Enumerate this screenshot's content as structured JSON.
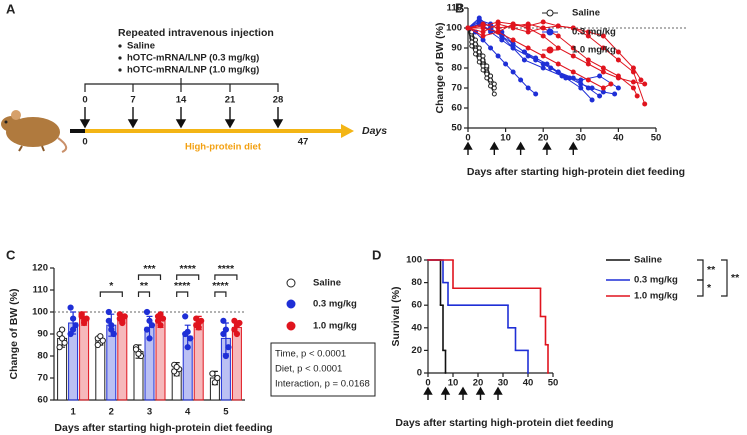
{
  "diagram": {
    "label": "A",
    "heading": "Repeated intravenous injection",
    "items": [
      "Saline",
      "hOTC-mRNA/LNP (0.3 mg/kg)",
      "hOTC-mRNA/LNP (1.0 mg/kg)"
    ],
    "injection_days": [
      "0",
      "7",
      "14",
      "21",
      "28"
    ],
    "timeline_start": "0",
    "timeline_end": "47",
    "axis_label": "Days",
    "diet_label": "High-protein diet"
  },
  "chart_data": [
    {
      "type": "line",
      "label": "B",
      "y_label": "Change of BW (%)",
      "x_label": "Days after starting high-protein diet feeding",
      "xlim": [
        0,
        50
      ],
      "xticks": [
        0,
        10,
        20,
        30,
        40,
        50
      ],
      "ylim": [
        50,
        110
      ],
      "yticks": [
        50,
        60,
        70,
        80,
        90,
        100,
        110
      ],
      "ref_line": 100,
      "arrow_days": [
        0,
        7,
        14,
        21,
        28
      ],
      "series": [
        {
          "name": "Saline",
          "color": "#222222",
          "marker": "open",
          "subjects": [
            {
              "x": [
                0,
                1,
                2,
                3,
                4,
                5,
                6,
                7
              ],
              "values": [
                100,
                91,
                87,
                83,
                79,
                75,
                71,
                67
              ]
            },
            {
              "x": [
                0,
                1,
                2,
                3,
                4,
                5,
                6,
                7
              ],
              "values": [
                100,
                95,
                90,
                86,
                82,
                78,
                74,
                70
              ]
            },
            {
              "x": [
                0,
                1,
                2,
                3,
                4,
                5,
                6
              ],
              "values": [
                100,
                97,
                92,
                88,
                84,
                80,
                76
              ]
            },
            {
              "x": [
                0,
                1,
                2,
                3,
                4,
                5
              ],
              "values": [
                100,
                93,
                89,
                85,
                81,
                77
              ]
            },
            {
              "x": [
                0,
                1,
                2,
                3,
                4,
                5,
                6,
                7
              ],
              "values": [
                100,
                98,
                94,
                90,
                86,
                81,
                76,
                72
              ]
            }
          ]
        },
        {
          "name": "0.3 mg/kg",
          "color": "#1f2fd6",
          "marker": "filled",
          "subjects": [
            {
              "x": [
                0,
                2,
                4,
                6,
                8,
                10,
                12,
                14,
                16,
                18
              ],
              "values": [
                100,
                98,
                94,
                90,
                86,
                82,
                78,
                74,
                70,
                67
              ]
            },
            {
              "x": [
                0,
                3,
                6,
                9,
                12,
                15,
                18,
                22,
                26,
                30,
                33
              ],
              "values": [
                100,
                104,
                102,
                98,
                92,
                88,
                84,
                80,
                75,
                70,
                64
              ]
            },
            {
              "x": [
                0,
                3,
                6,
                9,
                12,
                15,
                18,
                21,
                24,
                27,
                30,
                33,
                36,
                39
              ],
              "values": [
                100,
                102,
                99,
                96,
                92,
                88,
                85,
                82,
                78,
                75,
                72,
                70,
                68,
                67
              ]
            },
            {
              "x": [
                0,
                3,
                6,
                9,
                12,
                16,
                20,
                24,
                28,
                32,
                35
              ],
              "values": [
                100,
                105,
                100,
                96,
                90,
                86,
                82,
                78,
                75,
                70,
                66
              ]
            },
            {
              "x": [
                0,
                3,
                6,
                9,
                12,
                15,
                20,
                25,
                30,
                35,
                40
              ],
              "values": [
                100,
                103,
                98,
                94,
                90,
                84,
                80,
                76,
                74,
                76,
                70
              ]
            }
          ]
        },
        {
          "name": "1.0 mg/kg",
          "color": "#e0141e",
          "marker": "filled",
          "subjects": [
            {
              "x": [
                0,
                4,
                8,
                12,
                16,
                20,
                24,
                28,
                32,
                36,
                40,
                44,
                47
              ],
              "values": [
                100,
                100,
                98,
                102,
                100,
                96,
                90,
                86,
                82,
                78,
                75,
                73,
                72
              ]
            },
            {
              "x": [
                0,
                4,
                8,
                12,
                16,
                20,
                24,
                28,
                32,
                36,
                40,
                44,
                46
              ],
              "values": [
                100,
                102,
                100,
                101,
                102,
                100,
                101,
                100,
                98,
                96,
                88,
                80,
                74
              ]
            },
            {
              "x": [
                0,
                4,
                8,
                12,
                16,
                20,
                24,
                28,
                32,
                36,
                38
              ],
              "values": [
                100,
                96,
                98,
                94,
                90,
                86,
                82,
                78,
                74,
                70,
                72
              ]
            },
            {
              "x": [
                0,
                4,
                8,
                12,
                16,
                20,
                24,
                28,
                32,
                36,
                40,
                44,
                45
              ],
              "values": [
                100,
                98,
                102,
                100,
                98,
                100,
                96,
                90,
                84,
                80,
                76,
                70,
                66
              ]
            },
            {
              "x": [
                0,
                4,
                8,
                12,
                16,
                20,
                24,
                28,
                32,
                36,
                40,
                44,
                47
              ],
              "values": [
                100,
                101,
                103,
                102,
                101,
                103,
                101,
                100,
                96,
                90,
                84,
                78,
                62
              ]
            }
          ]
        }
      ]
    },
    {
      "type": "bar",
      "label": "C",
      "y_label": "Change of BW (%)",
      "x_label": "Days after starting high-protein diet feeding",
      "categories": [
        "1",
        "2",
        "3",
        "4",
        "5"
      ],
      "ylim": [
        60,
        120
      ],
      "yticks": [
        60,
        70,
        80,
        90,
        100,
        110,
        120
      ],
      "ref_line": 100,
      "series": [
        {
          "name": "Saline",
          "color": "#222222",
          "marker": "open",
          "values": [
            88,
            87,
            82,
            74,
            70
          ],
          "errors": [
            4,
            2,
            3,
            3,
            3
          ],
          "points": [
            [
              90,
              88,
              86,
              84,
              92
            ],
            [
              88,
              86,
              87,
              85,
              89
            ],
            [
              84,
              82,
              80,
              83,
              81
            ],
            [
              76,
              72,
              74,
              73,
              75
            ],
            [
              72,
              68,
              70
            ]
          ]
        },
        {
          "name": "0.3 mg/kg",
          "color": "#1f2fd6",
          "marker": "filled",
          "values": [
            95,
            94,
            93,
            89,
            88
          ],
          "errors": [
            5,
            5,
            5,
            5,
            7
          ],
          "points": [
            [
              102,
              92,
              94,
              90,
              97
            ],
            [
              100,
              92,
              90,
              96,
              94
            ],
            [
              100,
              88,
              94,
              92,
              96
            ],
            [
              98,
              84,
              88,
              90,
              91
            ],
            [
              96,
              80,
              84,
              90,
              92
            ]
          ]
        },
        {
          "name": "1.0 mg/kg",
          "color": "#e0141e",
          "marker": "filled",
          "values": [
            97,
            97,
            96,
            95,
            93
          ],
          "errors": [
            3,
            2,
            3,
            3,
            3
          ],
          "points": [
            [
              98,
              95,
              97,
              99,
              96
            ],
            [
              99,
              96,
              98,
              97,
              95
            ],
            [
              98,
              94,
              97,
              96,
              99
            ],
            [
              97,
              93,
              96,
              94,
              95
            ],
            [
              96,
              90,
              95,
              92,
              94
            ]
          ]
        }
      ],
      "significance": [
        {
          "category": 1,
          "between": [
            0,
            2
          ],
          "label": "*"
        },
        {
          "category": 2,
          "between": [
            0,
            1
          ],
          "label": "**"
        },
        {
          "category": 2,
          "between": [
            0,
            2
          ],
          "label": "***"
        },
        {
          "category": 3,
          "between": [
            0,
            1
          ],
          "label": "****"
        },
        {
          "category": 3,
          "between": [
            0,
            2
          ],
          "label": "****"
        },
        {
          "category": 4,
          "between": [
            0,
            1
          ],
          "label": "****"
        },
        {
          "category": 4,
          "between": [
            0,
            2
          ],
          "label": "****"
        }
      ],
      "annotations": [
        "Time, p < 0.0001",
        "Diet, p < 0.0001",
        "Interaction, p = 0.0168"
      ]
    },
    {
      "type": "step",
      "label": "D",
      "y_label": "Survival (%)",
      "x_label": "Days after starting high-protein diet feeding",
      "xlim": [
        0,
        50
      ],
      "xticks": [
        0,
        10,
        20,
        30,
        40,
        50
      ],
      "ylim": [
        0,
        100
      ],
      "yticks": [
        0,
        20,
        40,
        60,
        80,
        100
      ],
      "arrow_days": [
        0,
        7,
        14,
        21,
        28
      ],
      "series": [
        {
          "name": "Saline",
          "color": "#111111",
          "x": [
            0,
            5,
            6,
            7
          ],
          "values": [
            100,
            60,
            20,
            0
          ]
        },
        {
          "name": "0.3 mg/kg",
          "color": "#1f2fd6",
          "x": [
            0,
            6,
            8,
            32,
            35,
            40
          ],
          "values": [
            100,
            80,
            60,
            40,
            20,
            0
          ]
        },
        {
          "name": "1.0 mg/kg",
          "color": "#e0141e",
          "x": [
            0,
            10,
            45,
            47,
            48
          ],
          "values": [
            100,
            75,
            50,
            25,
            0
          ]
        }
      ],
      "significance": [
        {
          "between": [
            0,
            1
          ],
          "label": "**"
        },
        {
          "between": [
            1,
            2
          ],
          "label": "*"
        },
        {
          "between": [
            0,
            2
          ],
          "label": "**"
        }
      ]
    }
  ]
}
